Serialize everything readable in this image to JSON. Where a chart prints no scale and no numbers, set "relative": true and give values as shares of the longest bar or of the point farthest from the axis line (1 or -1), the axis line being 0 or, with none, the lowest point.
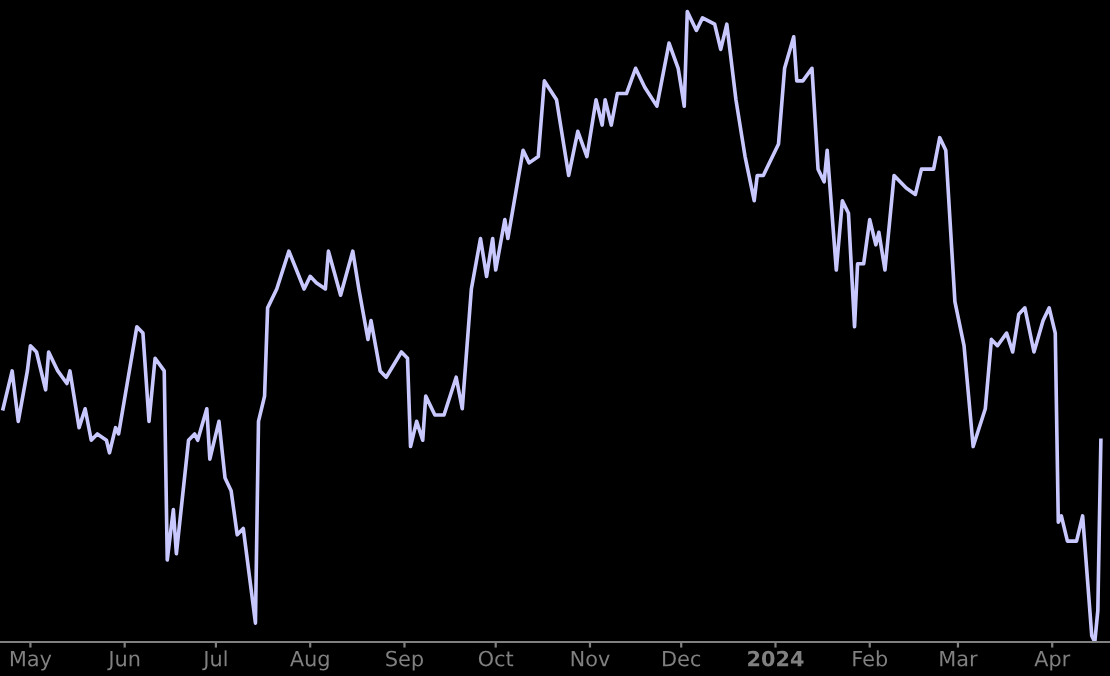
{
  "chart_data": {
    "type": "line",
    "relative": true,
    "grid": false,
    "legend": false,
    "xlim": [
      "2023-04-21",
      "2024-04-20"
    ],
    "xticks": [
      {
        "value": "2023-05-01",
        "label": "May"
      },
      {
        "value": "2023-06-01",
        "label": "Jun"
      },
      {
        "value": "2023-07-01",
        "label": "Jul"
      },
      {
        "value": "2023-08-01",
        "label": "Aug"
      },
      {
        "value": "2023-09-01",
        "label": "Sep"
      },
      {
        "value": "2023-10-01",
        "label": "Oct"
      },
      {
        "value": "2023-11-01",
        "label": "Nov"
      },
      {
        "value": "2023-12-01",
        "label": "Dec"
      },
      {
        "value": "2024-01-01",
        "label": "2024"
      },
      {
        "value": "2024-02-01",
        "label": "Feb"
      },
      {
        "value": "2024-03-01",
        "label": "Mar"
      },
      {
        "value": "2024-04-01",
        "label": "Apr"
      }
    ],
    "series": [
      {
        "color": "#c8c8ff",
        "x": [
          "2023-04-22",
          "2023-04-25",
          "2023-04-27",
          "2023-04-30",
          "2023-05-01",
          "2023-05-03",
          "2023-05-06",
          "2023-05-07",
          "2023-05-10",
          "2023-05-13",
          "2023-05-14",
          "2023-05-17",
          "2023-05-19",
          "2023-05-21",
          "2023-05-23",
          "2023-05-26",
          "2023-05-27",
          "2023-05-29",
          "2023-05-30",
          "2023-06-05",
          "2023-06-07",
          "2023-06-09",
          "2023-06-11",
          "2023-06-14",
          "2023-06-15",
          "2023-06-17",
          "2023-06-18",
          "2023-06-22",
          "2023-06-24",
          "2023-06-25",
          "2023-06-28",
          "2023-06-29",
          "2023-07-02",
          "2023-07-04",
          "2023-07-06",
          "2023-07-08",
          "2023-07-10",
          "2023-07-14",
          "2023-07-15",
          "2023-07-17",
          "2023-07-18",
          "2023-07-21",
          "2023-07-25",
          "2023-07-30",
          "2023-08-01",
          "2023-08-03",
          "2023-08-06",
          "2023-08-07",
          "2023-08-11",
          "2023-08-15",
          "2023-08-17",
          "2023-08-20",
          "2023-08-21",
          "2023-08-24",
          "2023-08-26",
          "2023-08-31",
          "2023-09-02",
          "2023-09-03",
          "2023-09-05",
          "2023-09-07",
          "2023-09-08",
          "2023-09-11",
          "2023-09-14",
          "2023-09-18",
          "2023-09-20",
          "2023-09-23",
          "2023-09-26",
          "2023-09-28",
          "2023-09-30",
          "2023-10-01",
          "2023-10-04",
          "2023-10-05",
          "2023-10-10",
          "2023-10-12",
          "2023-10-15",
          "2023-10-17",
          "2023-10-21",
          "2023-10-25",
          "2023-10-28",
          "2023-10-31",
          "2023-11-03",
          "2023-11-05",
          "2023-11-06",
          "2023-11-08",
          "2023-11-10",
          "2023-11-13",
          "2023-11-16",
          "2023-11-19",
          "2023-11-23",
          "2023-11-27",
          "2023-11-30",
          "2023-12-02",
          "2023-12-03",
          "2023-12-06",
          "2023-12-08",
          "2023-12-12",
          "2023-12-14",
          "2023-12-16",
          "2023-12-19",
          "2023-12-22",
          "2023-12-25",
          "2023-12-26",
          "2023-12-28",
          "2024-01-02",
          "2024-01-04",
          "2024-01-07",
          "2024-01-08",
          "2024-01-10",
          "2024-01-13",
          "2024-01-15",
          "2024-01-17",
          "2024-01-18",
          "2024-01-21",
          "2024-01-23",
          "2024-01-25",
          "2024-01-27",
          "2024-01-28",
          "2024-01-30",
          "2024-02-01",
          "2024-02-03",
          "2024-02-04",
          "2024-02-06",
          "2024-02-09",
          "2024-02-13",
          "2024-02-16",
          "2024-02-18",
          "2024-02-22",
          "2024-02-24",
          "2024-02-26",
          "2024-02-29",
          "2024-03-03",
          "2024-03-06",
          "2024-03-10",
          "2024-03-12",
          "2024-03-14",
          "2024-03-17",
          "2024-03-19",
          "2024-03-21",
          "2024-03-23",
          "2024-03-26",
          "2024-03-29",
          "2024-03-31",
          "2024-04-02",
          "2024-04-03",
          "2024-04-04",
          "2024-04-06",
          "2024-04-09",
          "2024-04-11",
          "2024-04-14",
          "2024-04-15",
          "2024-04-16",
          "2024-04-17"
        ],
        "values": [
          0.37,
          0.43,
          0.35,
          0.43,
          0.47,
          0.46,
          0.4,
          0.46,
          0.43,
          0.41,
          0.43,
          0.34,
          0.37,
          0.32,
          0.33,
          0.32,
          0.3,
          0.34,
          0.33,
          0.5,
          0.49,
          0.35,
          0.45,
          0.43,
          0.13,
          0.21,
          0.14,
          0.32,
          0.33,
          0.32,
          0.37,
          0.29,
          0.35,
          0.26,
          0.24,
          0.17,
          0.18,
          0.03,
          0.35,
          0.39,
          0.53,
          0.56,
          0.62,
          0.56,
          0.58,
          0.57,
          0.56,
          0.62,
          0.55,
          0.62,
          0.56,
          0.48,
          0.51,
          0.43,
          0.42,
          0.46,
          0.45,
          0.31,
          0.35,
          0.32,
          0.39,
          0.36,
          0.36,
          0.42,
          0.37,
          0.56,
          0.64,
          0.58,
          0.64,
          0.59,
          0.67,
          0.64,
          0.78,
          0.76,
          0.77,
          0.89,
          0.86,
          0.74,
          0.81,
          0.77,
          0.86,
          0.82,
          0.86,
          0.82,
          0.87,
          0.87,
          0.91,
          0.88,
          0.85,
          0.95,
          0.91,
          0.85,
          1.0,
          0.97,
          0.99,
          0.98,
          0.94,
          0.98,
          0.86,
          0.77,
          0.7,
          0.74,
          0.74,
          0.79,
          0.91,
          0.96,
          0.89,
          0.89,
          0.91,
          0.75,
          0.73,
          0.78,
          0.59,
          0.7,
          0.68,
          0.5,
          0.6,
          0.6,
          0.67,
          0.63,
          0.65,
          0.59,
          0.74,
          0.72,
          0.71,
          0.75,
          0.75,
          0.8,
          0.78,
          0.54,
          0.47,
          0.31,
          0.37,
          0.48,
          0.47,
          0.49,
          0.46,
          0.52,
          0.53,
          0.46,
          0.51,
          0.53,
          0.49,
          0.19,
          0.2,
          0.16,
          0.16,
          0.2,
          0.01,
          0.0,
          0.05,
          0.32
        ]
      }
    ]
  }
}
